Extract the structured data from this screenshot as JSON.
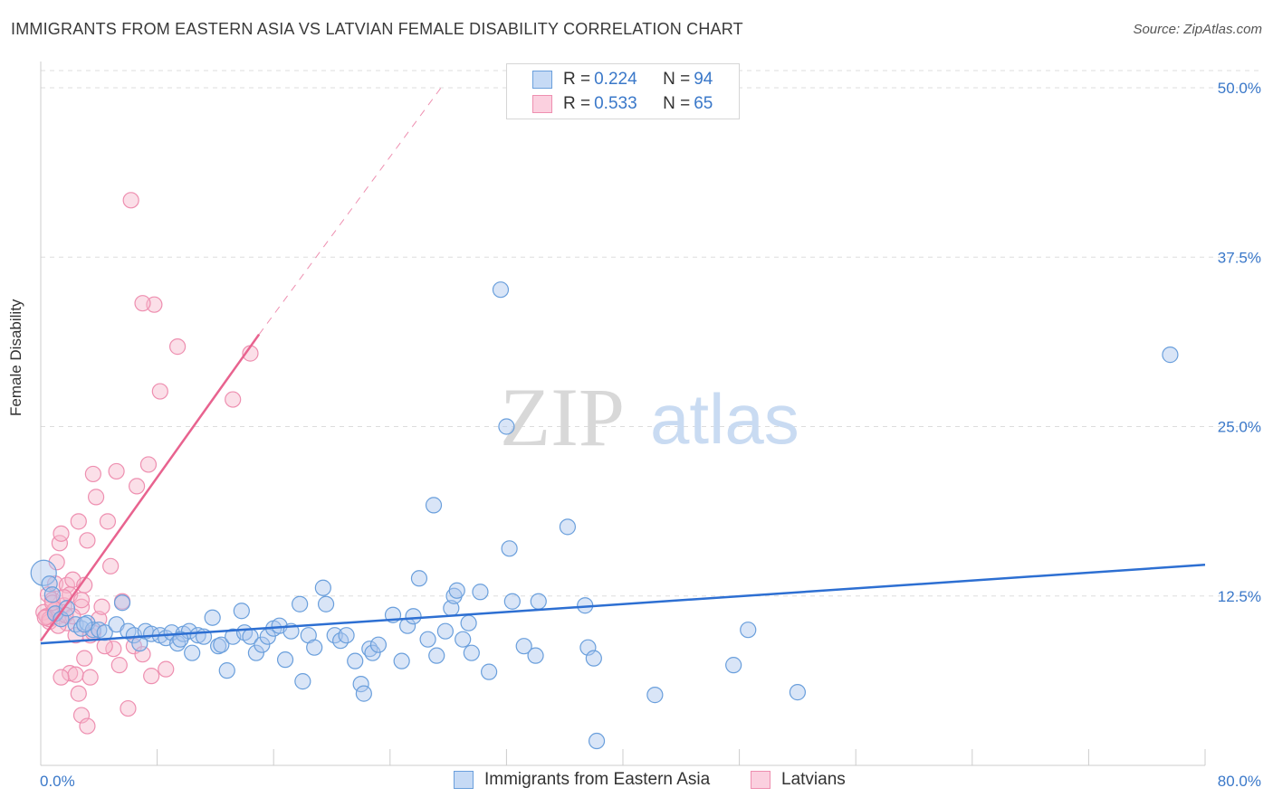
{
  "header": {
    "title": "IMMIGRANTS FROM EASTERN ASIA VS LATVIAN FEMALE DISABILITY CORRELATION CHART",
    "source": "Source: ZipAtlas.com"
  },
  "watermark": {
    "zip": "ZIP",
    "atlas": "atlas"
  },
  "legend": {
    "rows": [
      {
        "r_label": "R = ",
        "r_value": "0.224",
        "n_label": "N = ",
        "n_value": "94",
        "color": "#6a9fdc"
      },
      {
        "r_label": "R = ",
        "r_value": "0.533",
        "n_label": "N = ",
        "n_value": "65",
        "color": "#ee8fb0"
      }
    ]
  },
  "colors": {
    "blue_fill": "#aac6ee",
    "blue_stroke": "#6a9fdc",
    "blue_line": "#2d6fd2",
    "pink_fill": "#f6b8cd",
    "pink_stroke": "#ee8fb0",
    "pink_line": "#e8638f",
    "tick_label": "#3a78c9",
    "grid": "#dddddd"
  },
  "chart_data": {
    "type": "scatter",
    "title": "IMMIGRANTS FROM EASTERN ASIA VS LATVIAN FEMALE DISABILITY CORRELATION CHART",
    "xlabel": "",
    "ylabel": "Female Disability",
    "xlim": [
      0,
      80
    ],
    "ylim": [
      0,
      50
    ],
    "x_tick_labels": [
      "0.0%",
      "80.0%"
    ],
    "y_ticks": [
      12.5,
      25.0,
      37.5,
      50.0
    ],
    "y_tick_labels": [
      "12.5%",
      "25.0%",
      "37.5%",
      "50.0%"
    ],
    "grid": true,
    "legend_position": "top-center",
    "series": [
      {
        "name": "Immigrants from Eastern Asia",
        "R": 0.224,
        "N": 94,
        "trend": {
          "x": [
            0,
            80
          ],
          "y": [
            9.0,
            14.8
          ]
        },
        "points": [
          [
            0.2,
            14.2
          ],
          [
            0.6,
            13.4
          ],
          [
            0.8,
            12.6
          ],
          [
            1.0,
            11.2
          ],
          [
            1.4,
            10.8
          ],
          [
            1.8,
            11.6
          ],
          [
            2.4,
            10.4
          ],
          [
            2.8,
            10.1
          ],
          [
            3.2,
            10.5
          ],
          [
            3.6,
            10.0
          ],
          [
            4.0,
            10.0
          ],
          [
            4.4,
            9.8
          ],
          [
            5.2,
            10.4
          ],
          [
            5.6,
            12.0
          ],
          [
            6.0,
            9.9
          ],
          [
            6.4,
            9.6
          ],
          [
            6.8,
            9.0
          ],
          [
            7.2,
            9.9
          ],
          [
            7.6,
            9.7
          ],
          [
            8.2,
            9.6
          ],
          [
            8.6,
            9.4
          ],
          [
            9.0,
            9.8
          ],
          [
            9.4,
            9.0
          ],
          [
            9.8,
            9.7
          ],
          [
            10.2,
            9.9
          ],
          [
            10.4,
            8.3
          ],
          [
            10.8,
            9.6
          ],
          [
            11.2,
            9.5
          ],
          [
            11.8,
            10.9
          ],
          [
            12.2,
            8.8
          ],
          [
            12.4,
            8.9
          ],
          [
            12.8,
            7.0
          ],
          [
            13.2,
            9.5
          ],
          [
            13.8,
            11.4
          ],
          [
            14.0,
            9.8
          ],
          [
            14.4,
            9.5
          ],
          [
            14.8,
            8.3
          ],
          [
            15.2,
            8.9
          ],
          [
            15.6,
            9.5
          ],
          [
            16.0,
            10.1
          ],
          [
            16.4,
            10.3
          ],
          [
            16.8,
            7.8
          ],
          [
            17.2,
            9.9
          ],
          [
            17.8,
            11.9
          ],
          [
            18.0,
            6.2
          ],
          [
            18.4,
            9.6
          ],
          [
            18.8,
            8.7
          ],
          [
            19.4,
            13.1
          ],
          [
            19.6,
            11.9
          ],
          [
            20.2,
            9.6
          ],
          [
            20.6,
            9.2
          ],
          [
            21.0,
            9.6
          ],
          [
            21.6,
            7.7
          ],
          [
            22.0,
            6.0
          ],
          [
            22.2,
            5.3
          ],
          [
            22.6,
            8.6
          ],
          [
            22.8,
            8.3
          ],
          [
            23.2,
            8.9
          ],
          [
            24.2,
            11.1
          ],
          [
            24.8,
            7.7
          ],
          [
            25.2,
            10.3
          ],
          [
            25.6,
            11.0
          ],
          [
            26.0,
            13.8
          ],
          [
            26.6,
            9.3
          ],
          [
            27.2,
            8.1
          ],
          [
            27.8,
            9.9
          ],
          [
            28.2,
            11.6
          ],
          [
            28.4,
            12.5
          ],
          [
            28.6,
            12.9
          ],
          [
            29.0,
            9.3
          ],
          [
            29.4,
            10.5
          ],
          [
            29.6,
            8.3
          ],
          [
            30.2,
            12.8
          ],
          [
            30.8,
            6.9
          ],
          [
            31.6,
            35.1
          ],
          [
            32.0,
            25.0
          ],
          [
            32.2,
            16.0
          ],
          [
            32.4,
            12.1
          ],
          [
            33.2,
            8.8
          ],
          [
            34.0,
            8.1
          ],
          [
            34.2,
            12.1
          ],
          [
            36.2,
            17.6
          ],
          [
            37.4,
            11.8
          ],
          [
            37.6,
            8.7
          ],
          [
            38.0,
            7.9
          ],
          [
            38.2,
            1.8
          ],
          [
            42.2,
            5.2
          ],
          [
            47.6,
            7.4
          ],
          [
            48.6,
            10.0
          ],
          [
            52.0,
            5.4
          ],
          [
            77.6,
            30.3
          ],
          [
            27.0,
            19.2
          ],
          [
            9.6,
            9.3
          ],
          [
            3.0,
            10.4
          ]
        ]
      },
      {
        "name": "Latvians",
        "R": 0.533,
        "N": 65,
        "trend": {
          "x": [
            0,
            15
          ],
          "y": [
            9.2,
            31.8
          ]
        },
        "trend_dashed": {
          "x": [
            15,
            27.5
          ],
          "y": [
            31.8,
            50.0
          ]
        },
        "points": [
          [
            0.2,
            11.3
          ],
          [
            0.4,
            11.0
          ],
          [
            0.5,
            12.6
          ],
          [
            0.6,
            10.6
          ],
          [
            0.8,
            12.2
          ],
          [
            0.9,
            11.4
          ],
          [
            1.0,
            13.4
          ],
          [
            1.1,
            15.0
          ],
          [
            1.2,
            11.0
          ],
          [
            1.3,
            16.4
          ],
          [
            1.4,
            17.1
          ],
          [
            1.6,
            11.8
          ],
          [
            1.8,
            13.3
          ],
          [
            2.0,
            12.6
          ],
          [
            2.2,
            13.7
          ],
          [
            2.4,
            9.6
          ],
          [
            2.6,
            18.0
          ],
          [
            2.8,
            11.7
          ],
          [
            3.0,
            13.3
          ],
          [
            3.2,
            16.6
          ],
          [
            3.4,
            9.6
          ],
          [
            3.6,
            21.5
          ],
          [
            3.8,
            19.8
          ],
          [
            4.0,
            10.8
          ],
          [
            4.2,
            11.7
          ],
          [
            4.6,
            18.0
          ],
          [
            4.8,
            14.7
          ],
          [
            5.0,
            8.6
          ],
          [
            5.2,
            21.7
          ],
          [
            5.4,
            7.4
          ],
          [
            5.6,
            12.1
          ],
          [
            6.0,
            4.2
          ],
          [
            6.2,
            41.7
          ],
          [
            6.4,
            8.8
          ],
          [
            6.6,
            20.6
          ],
          [
            7.0,
            8.2
          ],
          [
            7.4,
            22.2
          ],
          [
            7.6,
            6.6
          ],
          [
            7.8,
            34.0
          ],
          [
            8.2,
            27.6
          ],
          [
            7.0,
            34.1
          ],
          [
            8.6,
            7.1
          ],
          [
            9.4,
            30.9
          ],
          [
            13.2,
            27.0
          ],
          [
            14.4,
            30.4
          ],
          [
            3.0,
            7.9
          ],
          [
            2.0,
            6.8
          ],
          [
            2.4,
            6.7
          ],
          [
            2.6,
            5.3
          ],
          [
            2.8,
            3.7
          ],
          [
            3.2,
            2.9
          ],
          [
            3.4,
            6.5
          ],
          [
            1.4,
            6.5
          ],
          [
            1.8,
            10.5
          ],
          [
            0.6,
            10.8
          ],
          [
            1.0,
            11.5
          ],
          [
            0.8,
            12.0
          ],
          [
            1.6,
            12.4
          ],
          [
            2.2,
            11.0
          ],
          [
            3.6,
            9.8
          ],
          [
            1.2,
            10.3
          ],
          [
            4.4,
            8.8
          ],
          [
            0.3,
            10.9
          ],
          [
            2.8,
            12.2
          ],
          [
            1.7,
            11.1
          ]
        ]
      }
    ]
  },
  "bottom_legend": {
    "items": [
      {
        "label": "Immigrants from Eastern Asia"
      },
      {
        "label": "Latvians"
      }
    ]
  }
}
